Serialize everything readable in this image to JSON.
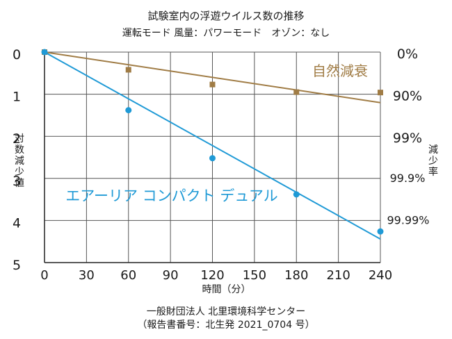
{
  "title": "試験室内の浮遊ウイルス数の推移",
  "subtitle": "運転モード 風量：パワーモード　オゾン：なし",
  "footer": {
    "line1": "一般財団法人 北里環境科学センター",
    "line2": "（報告書番号：北生発 2021_0704 号）"
  },
  "chart_data": {
    "type": "scatter",
    "xlabel": "時間（分）",
    "ylabel": "対数減少値",
    "y2label": "減少率",
    "x_ticks": [
      0,
      30,
      60,
      90,
      120,
      150,
      180,
      210,
      240
    ],
    "y_ticks": [
      0,
      1,
      2,
      3,
      4,
      5
    ],
    "y2_ticks": [
      "0%",
      "90%",
      "99%",
      "99.9%",
      "99.99%"
    ],
    "xlim": [
      0,
      240
    ],
    "ylim": [
      0,
      5
    ],
    "y_inverted": true,
    "grid": true,
    "colors": {
      "natural": "#a07c45",
      "device": "#1f9ad6"
    },
    "series": [
      {
        "name": "自然減衰",
        "points": [
          [
            0,
            0
          ],
          [
            60,
            0.42
          ],
          [
            120,
            0.77
          ],
          [
            180,
            0.95
          ],
          [
            240,
            0.96
          ]
        ],
        "trend": [
          [
            0,
            0
          ],
          [
            240,
            1.2
          ]
        ]
      },
      {
        "name": "エアーリア コンパクト デュアル",
        "points": [
          [
            0,
            0
          ],
          [
            60,
            1.38
          ],
          [
            120,
            2.52
          ],
          [
            180,
            3.38
          ],
          [
            240,
            4.26
          ]
        ],
        "trend": [
          [
            0,
            0
          ],
          [
            240,
            4.44
          ]
        ]
      }
    ]
  }
}
